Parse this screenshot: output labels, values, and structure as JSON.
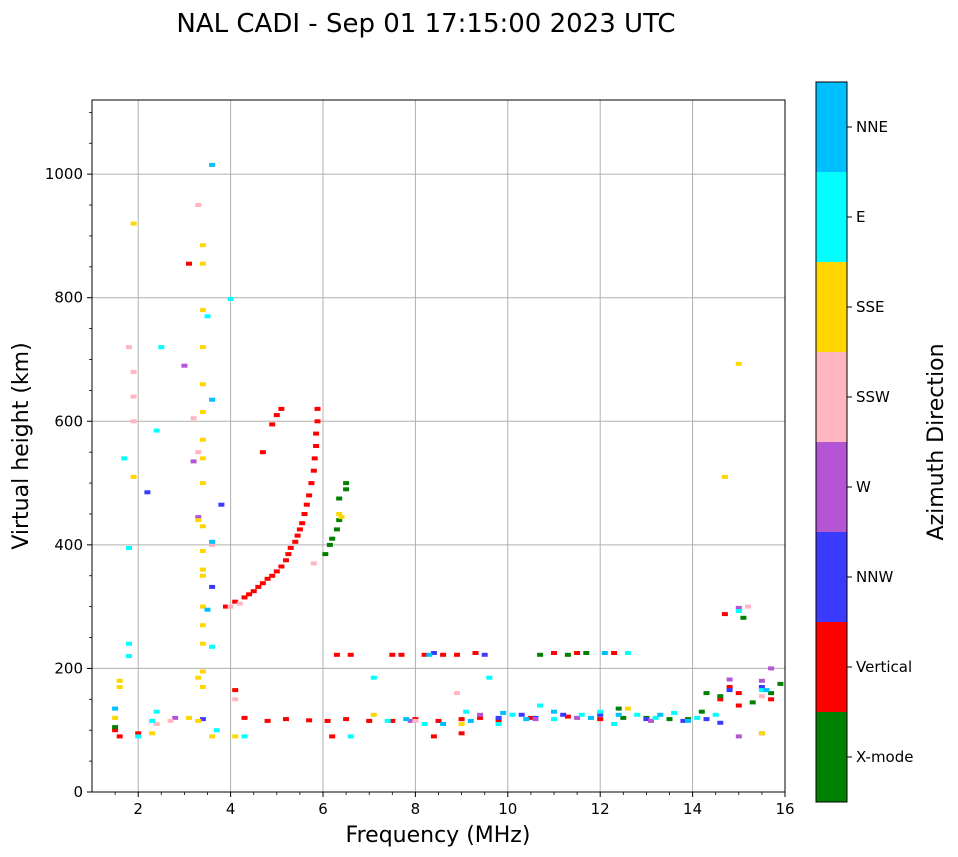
{
  "chart_data": {
    "type": "scatter",
    "title": "NAL CADI - Sep 01 17:15:00 2023 UTC",
    "xlabel": "Frequency (MHz)",
    "ylabel": "Virtual height (km)",
    "xlim": [
      1,
      16
    ],
    "ylim": [
      0,
      1120
    ],
    "xticks": [
      2,
      4,
      6,
      8,
      10,
      12,
      14,
      16
    ],
    "yticks": [
      0,
      200,
      400,
      600,
      800,
      1000
    ],
    "grid": true,
    "colorbar": {
      "label": "Azimuth Direction",
      "categories": [
        {
          "name": "X-mode",
          "color": "#008000"
        },
        {
          "name": "Vertical",
          "color": "#ff0000"
        },
        {
          "name": "NNW",
          "color": "#3b3bff"
        },
        {
          "name": "W",
          "color": "#b455d4"
        },
        {
          "name": "SSW",
          "color": "#ffb6c1"
        },
        {
          "name": "SSE",
          "color": "#ffd700"
        },
        {
          "name": "E",
          "color": "#00ffff"
        },
        {
          "name": "NNE",
          "color": "#00bfff"
        }
      ]
    },
    "series": [
      {
        "name": "Vertical",
        "points": [
          [
            3.9,
            300
          ],
          [
            4.1,
            308
          ],
          [
            4.3,
            315
          ],
          [
            4.4,
            320
          ],
          [
            4.5,
            325
          ],
          [
            4.6,
            332
          ],
          [
            4.7,
            338
          ],
          [
            4.8,
            345
          ],
          [
            4.9,
            350
          ],
          [
            5.0,
            357
          ],
          [
            5.1,
            365
          ],
          [
            5.2,
            375
          ],
          [
            5.25,
            385
          ],
          [
            5.3,
            395
          ],
          [
            5.4,
            405
          ],
          [
            5.45,
            415
          ],
          [
            5.5,
            425
          ],
          [
            5.55,
            435
          ],
          [
            5.6,
            450
          ],
          [
            5.65,
            465
          ],
          [
            5.7,
            480
          ],
          [
            5.75,
            500
          ],
          [
            5.8,
            520
          ],
          [
            5.82,
            540
          ],
          [
            5.85,
            560
          ],
          [
            5.85,
            580
          ],
          [
            5.88,
            600
          ],
          [
            5.88,
            620
          ],
          [
            4.7,
            550
          ],
          [
            4.9,
            595
          ],
          [
            5.0,
            610
          ],
          [
            5.1,
            620
          ],
          [
            6.3,
            222
          ],
          [
            6.6,
            222
          ],
          [
            7.5,
            222
          ],
          [
            7.7,
            222
          ],
          [
            8.2,
            222
          ],
          [
            8.6,
            222
          ],
          [
            8.9,
            222
          ],
          [
            9.3,
            225
          ],
          [
            11.0,
            225
          ],
          [
            11.5,
            225
          ],
          [
            12.3,
            225
          ],
          [
            4.1,
            165
          ],
          [
            4.3,
            120
          ],
          [
            4.8,
            115
          ],
          [
            5.2,
            118
          ],
          [
            5.7,
            116
          ],
          [
            6.1,
            115
          ],
          [
            6.5,
            118
          ],
          [
            7.0,
            115
          ],
          [
            7.5,
            115
          ],
          [
            8.0,
            118
          ],
          [
            8.5,
            115
          ],
          [
            9.0,
            118
          ],
          [
            9.4,
            120
          ],
          [
            9.8,
            115
          ],
          [
            10.5,
            120
          ],
          [
            11.3,
            122
          ],
          [
            12.0,
            118
          ],
          [
            6.2,
            90
          ],
          [
            8.4,
            90
          ],
          [
            9.0,
            95
          ],
          [
            1.6,
            90
          ],
          [
            2.0,
            95
          ],
          [
            1.5,
            100
          ],
          [
            14.8,
            170
          ],
          [
            15.0,
            160
          ],
          [
            14.6,
            150
          ],
          [
            15.0,
            140
          ],
          [
            15.7,
            150
          ],
          [
            14.7,
            288
          ],
          [
            3.1,
            855
          ]
        ]
      },
      {
        "name": "X-mode",
        "points": [
          [
            6.05,
            385
          ],
          [
            6.15,
            400
          ],
          [
            6.2,
            410
          ],
          [
            6.3,
            425
          ],
          [
            6.35,
            440
          ],
          [
            6.5,
            490
          ],
          [
            6.5,
            500
          ],
          [
            6.35,
            475
          ],
          [
            10.7,
            222
          ],
          [
            11.3,
            222
          ],
          [
            11.7,
            225
          ],
          [
            12.4,
            135
          ],
          [
            12.5,
            120
          ],
          [
            13.0,
            120
          ],
          [
            13.5,
            118
          ],
          [
            13.9,
            118
          ],
          [
            14.2,
            130
          ],
          [
            14.3,
            160
          ],
          [
            14.6,
            155
          ],
          [
            15.3,
            145
          ],
          [
            15.7,
            160
          ],
          [
            15.9,
            175
          ],
          [
            15.1,
            282
          ],
          [
            1.5,
            105
          ]
        ]
      },
      {
        "name": "NNW",
        "points": [
          [
            3.8,
            465
          ],
          [
            3.6,
            332
          ],
          [
            8.4,
            225
          ],
          [
            9.5,
            222
          ],
          [
            9.8,
            120
          ],
          [
            10.3,
            125
          ],
          [
            10.6,
            120
          ],
          [
            11.2,
            125
          ],
          [
            12.0,
            125
          ],
          [
            13.0,
            118
          ],
          [
            13.8,
            115
          ],
          [
            14.3,
            118
          ],
          [
            14.6,
            112
          ],
          [
            14.8,
            165
          ],
          [
            15.5,
            170
          ],
          [
            3.4,
            118
          ],
          [
            2.2,
            485
          ]
        ]
      },
      {
        "name": "W",
        "points": [
          [
            3.0,
            690
          ],
          [
            2.8,
            120
          ],
          [
            7.9,
            115
          ],
          [
            9.4,
            125
          ],
          [
            10.6,
            118
          ],
          [
            11.5,
            120
          ],
          [
            13.1,
            115
          ],
          [
            15.0,
            90
          ],
          [
            15.5,
            95
          ],
          [
            15.5,
            180
          ],
          [
            15.7,
            200
          ],
          [
            15.0,
            298
          ],
          [
            14.8,
            182
          ],
          [
            3.2,
            535
          ],
          [
            3.3,
            445
          ]
        ]
      },
      {
        "name": "SSW",
        "points": [
          [
            3.3,
            950
          ],
          [
            3.2,
            605
          ],
          [
            3.3,
            550
          ],
          [
            3.6,
            400
          ],
          [
            4.0,
            300
          ],
          [
            4.2,
            305
          ],
          [
            4.1,
            150
          ],
          [
            5.8,
            370
          ],
          [
            8.0,
            115
          ],
          [
            8.9,
            160
          ],
          [
            2.4,
            110
          ],
          [
            2.7,
            115
          ],
          [
            1.9,
            640
          ],
          [
            1.9,
            600
          ],
          [
            1.8,
            720
          ],
          [
            1.9,
            680
          ],
          [
            15.5,
            155
          ],
          [
            15.2,
            300
          ]
        ]
      },
      {
        "name": "SSE",
        "points": [
          [
            3.4,
            885
          ],
          [
            3.4,
            855
          ],
          [
            3.4,
            780
          ],
          [
            3.4,
            720
          ],
          [
            3.4,
            660
          ],
          [
            3.4,
            615
          ],
          [
            3.4,
            570
          ],
          [
            3.4,
            540
          ],
          [
            3.4,
            500
          ],
          [
            3.3,
            440
          ],
          [
            3.4,
            430
          ],
          [
            3.4,
            390
          ],
          [
            3.4,
            360
          ],
          [
            3.4,
            350
          ],
          [
            3.4,
            300
          ],
          [
            3.4,
            270
          ],
          [
            3.4,
            240
          ],
          [
            3.4,
            195
          ],
          [
            3.3,
            185
          ],
          [
            3.4,
            170
          ],
          [
            3.6,
            90
          ],
          [
            3.3,
            115
          ],
          [
            3.1,
            120
          ],
          [
            4.1,
            90
          ],
          [
            6.35,
            450
          ],
          [
            6.4,
            445
          ],
          [
            1.6,
            180
          ],
          [
            1.6,
            170
          ],
          [
            1.5,
            120
          ],
          [
            2.3,
            95
          ],
          [
            1.9,
            920
          ],
          [
            1.9,
            510
          ],
          [
            7.1,
            125
          ],
          [
            9.0,
            110
          ],
          [
            12.6,
            135
          ],
          [
            14.7,
            510
          ],
          [
            15.0,
            693
          ],
          [
            15.5,
            95
          ]
        ]
      },
      {
        "name": "E",
        "points": [
          [
            3.5,
            770
          ],
          [
            4.0,
            798
          ],
          [
            3.6,
            235
          ],
          [
            3.7,
            100
          ],
          [
            4.3,
            90
          ],
          [
            6.6,
            90
          ],
          [
            7.4,
            115
          ],
          [
            8.2,
            110
          ],
          [
            9.1,
            130
          ],
          [
            9.8,
            110
          ],
          [
            10.1,
            125
          ],
          [
            10.7,
            140
          ],
          [
            11.0,
            118
          ],
          [
            11.6,
            125
          ],
          [
            12.0,
            130
          ],
          [
            12.3,
            110
          ],
          [
            12.8,
            125
          ],
          [
            13.2,
            120
          ],
          [
            13.6,
            128
          ],
          [
            14.1,
            120
          ],
          [
            9.6,
            185
          ],
          [
            7.1,
            185
          ],
          [
            1.7,
            540
          ],
          [
            1.8,
            395
          ],
          [
            2.0,
            90
          ],
          [
            2.3,
            115
          ],
          [
            2.4,
            130
          ],
          [
            1.8,
            220
          ],
          [
            1.8,
            240
          ],
          [
            2.4,
            585
          ],
          [
            2.5,
            720
          ],
          [
            12.6,
            225
          ],
          [
            15.5,
            165
          ],
          [
            14.5,
            125
          ],
          [
            15.0,
            293
          ]
        ]
      },
      {
        "name": "NNE",
        "points": [
          [
            3.6,
            1015
          ],
          [
            3.6,
            635
          ],
          [
            3.6,
            405
          ],
          [
            3.5,
            295
          ],
          [
            7.8,
            118
          ],
          [
            8.6,
            110
          ],
          [
            9.2,
            115
          ],
          [
            9.9,
            128
          ],
          [
            10.4,
            118
          ],
          [
            11.0,
            130
          ],
          [
            11.8,
            120
          ],
          [
            12.4,
            125
          ],
          [
            13.3,
            125
          ],
          [
            13.9,
            115
          ],
          [
            1.5,
            135
          ],
          [
            8.3,
            222
          ],
          [
            12.1,
            225
          ],
          [
            15.6,
            165
          ]
        ]
      }
    ]
  }
}
